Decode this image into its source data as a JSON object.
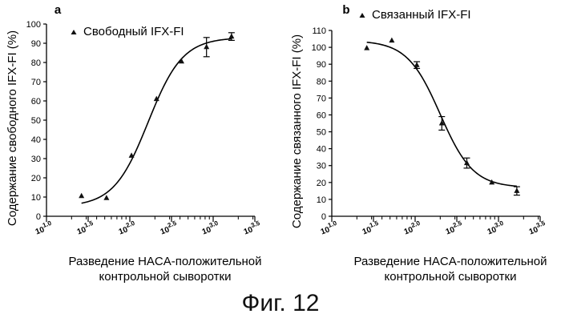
{
  "figure_caption": "Фиг. 12",
  "chart_data": [
    {
      "panel": "a",
      "type": "scatter",
      "title": "",
      "ylabel": "Содержание свободного IFX-FI (%)",
      "xlabel_line1": "Разведение HACA-положительной",
      "xlabel_line2": "контрольной сыворотки",
      "x_scale": "log10",
      "xlim": [
        1.0,
        3.5
      ],
      "ylim": [
        0,
        100
      ],
      "yticks": [
        "0",
        "10",
        "20",
        "30",
        "40",
        "50",
        "60",
        "70",
        "80",
        "90",
        "100"
      ],
      "xtick_values": [
        1.0,
        1.5,
        2.0,
        2.5,
        3.0,
        3.5
      ],
      "xtick_labels": [
        {
          "base": "10",
          "exp": "1.0"
        },
        {
          "base": "10",
          "exp": "1.5"
        },
        {
          "base": "10",
          "exp": "2.0"
        },
        {
          "base": "10",
          "exp": "2.5"
        },
        {
          "base": "10",
          "exp": "3.0"
        },
        {
          "base": "10",
          "exp": "3.5"
        }
      ],
      "legend": {
        "label": "Свободный IFX-FI",
        "marker": "triangle",
        "position": "top-left"
      },
      "grid": false,
      "series": [
        {
          "points": [
            {
              "x": 1.42,
              "y": 10.5,
              "err": 0
            },
            {
              "x": 1.72,
              "y": 9.5,
              "err": 0
            },
            {
              "x": 2.02,
              "y": 31.5,
              "err": 0
            },
            {
              "x": 2.32,
              "y": 61.0,
              "err": 0
            },
            {
              "x": 2.62,
              "y": 80.5,
              "err": 0
            },
            {
              "x": 2.92,
              "y": 88.0,
              "err": 5
            },
            {
              "x": 3.22,
              "y": 93.5,
              "err": 2
            }
          ],
          "fit": {
            "bottom": 5.0,
            "top": 93.0,
            "logEC50": 2.22,
            "hill": 2.1,
            "x_from": 1.42,
            "x_to": 3.22
          }
        }
      ]
    },
    {
      "panel": "b",
      "type": "scatter",
      "title": "",
      "ylabel": "Содержание связанного IFX-FI (%)",
      "xlabel_line1": "Разведение HACA-положительной",
      "xlabel_line2": "контрольной сыворотки",
      "x_scale": "log10",
      "xlim": [
        1.0,
        3.5
      ],
      "ylim": [
        0,
        110
      ],
      "yticks": [
        "0",
        "10",
        "20",
        "30",
        "40",
        "50",
        "60",
        "70",
        "80",
        "90",
        "100",
        "110"
      ],
      "xtick_values": [
        1.0,
        1.5,
        2.0,
        2.5,
        3.0,
        3.5
      ],
      "xtick_labels": [
        {
          "base": "10",
          "exp": "1.0"
        },
        {
          "base": "10",
          "exp": "1.5"
        },
        {
          "base": "10",
          "exp": "2.0"
        },
        {
          "base": "10",
          "exp": "2.5"
        },
        {
          "base": "10",
          "exp": "3.0"
        },
        {
          "base": "10",
          "exp": "3.5"
        }
      ],
      "legend": {
        "label": "Связанный IFX-FI",
        "marker": "triangle",
        "position": "top-left"
      },
      "grid": false,
      "series": [
        {
          "points": [
            {
              "x": 1.42,
              "y": 99.5,
              "err": 0
            },
            {
              "x": 1.72,
              "y": 104.0,
              "err": 0
            },
            {
              "x": 2.02,
              "y": 89.5,
              "err": 2
            },
            {
              "x": 2.32,
              "y": 55.0,
              "err": 4
            },
            {
              "x": 2.62,
              "y": 31.5,
              "err": 3
            },
            {
              "x": 2.92,
              "y": 20.0,
              "err": 0
            },
            {
              "x": 3.22,
              "y": 15.0,
              "err": 2.5
            }
          ],
          "fit": {
            "bottom": 17.0,
            "top": 104.0,
            "logEC50": 2.3,
            "hill": -2.2,
            "x_from": 1.42,
            "x_to": 3.22
          }
        }
      ]
    }
  ]
}
